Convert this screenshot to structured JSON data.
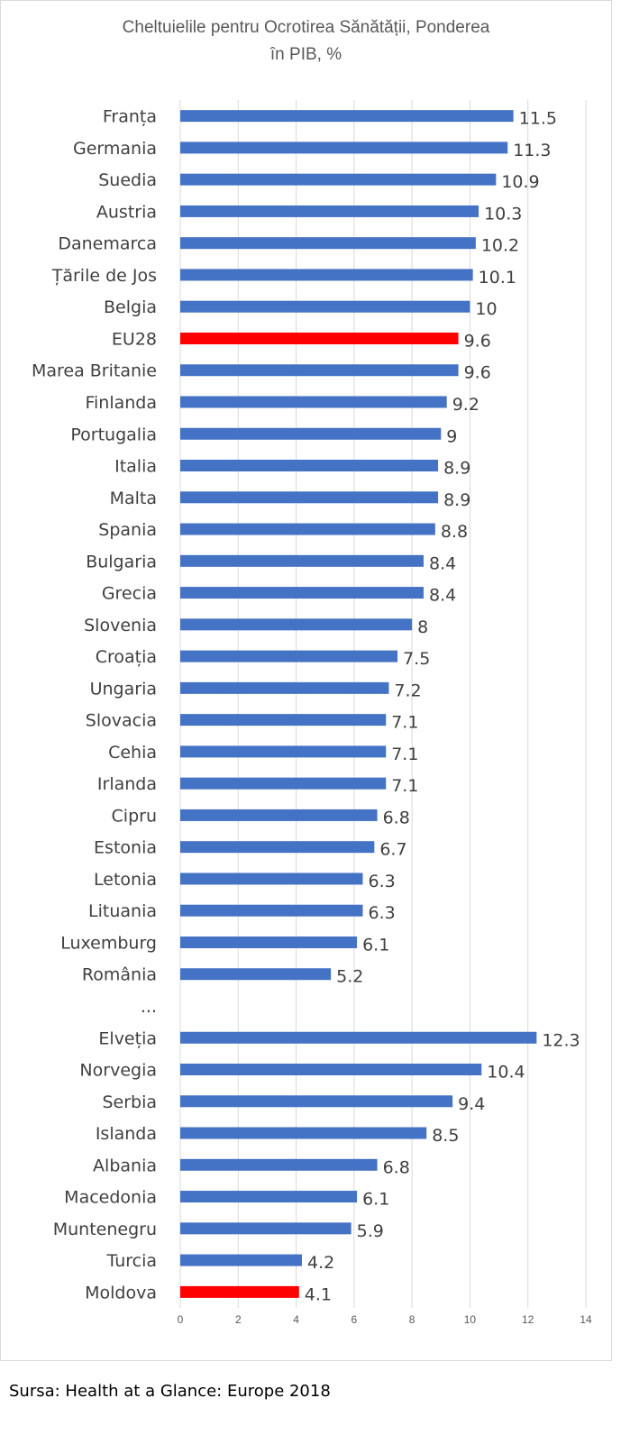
{
  "chart_data": {
    "type": "bar",
    "orientation": "horizontal",
    "title": "Cheltuielile pentru Ocrotirea Sănătății, Ponderea\nîn PIB, %",
    "categories": [
      "Franța",
      "Germania",
      "Suedia",
      "Austria",
      "Danemarca",
      "Țările de Jos",
      "Belgia",
      "EU28",
      "Marea Britanie",
      "Finlanda",
      "Portugalia",
      "Italia",
      "Malta",
      "Spania",
      "Bulgaria",
      "Grecia",
      "Slovenia",
      "Croația",
      "Ungaria",
      "Slovacia",
      "Cehia",
      "Irlanda",
      "Cipru",
      "Estonia",
      "Letonia",
      "Lituania",
      "Luxemburg",
      "România",
      "...",
      "Elveția",
      "Norvegia",
      "Serbia",
      "Islanda",
      "Albania",
      "Macedonia",
      "Muntenegru",
      "Turcia",
      "Moldova"
    ],
    "values": [
      11.5,
      11.3,
      10.9,
      10.3,
      10.2,
      10.1,
      10,
      9.6,
      9.6,
      9.2,
      9,
      8.9,
      8.9,
      8.8,
      8.4,
      8.4,
      8,
      7.5,
      7.2,
      7.1,
      7.1,
      7.1,
      6.8,
      6.7,
      6.3,
      6.3,
      6.1,
      5.2,
      null,
      12.3,
      10.4,
      9.4,
      8.5,
      6.8,
      6.1,
      5.9,
      4.2,
      4.1
    ],
    "highlight": [
      "EU28",
      "Moldova"
    ],
    "xlim": [
      0,
      14
    ],
    "xticks": [
      "0",
      "2",
      "4",
      "6",
      "8",
      "10",
      "12",
      "14"
    ],
    "grid": true,
    "legend": "none",
    "colors": {
      "bar": "#4472C4",
      "highlight": "#FF0000",
      "grid": "#d9d9d9",
      "text": "#404040"
    }
  },
  "source": "Sursa: Health at a Glance: Europe 2018"
}
